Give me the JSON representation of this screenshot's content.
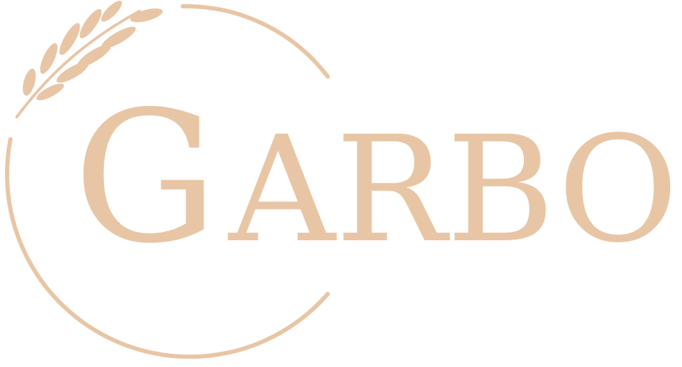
{
  "logo": {
    "wordmark": "GARBO",
    "first_letter": "G",
    "rest_letters": "ARBO",
    "brand_color": "#e8c6a5",
    "emblem_icon": "wheat-sprig-icon",
    "ring_icon": "open-circle-ring"
  }
}
